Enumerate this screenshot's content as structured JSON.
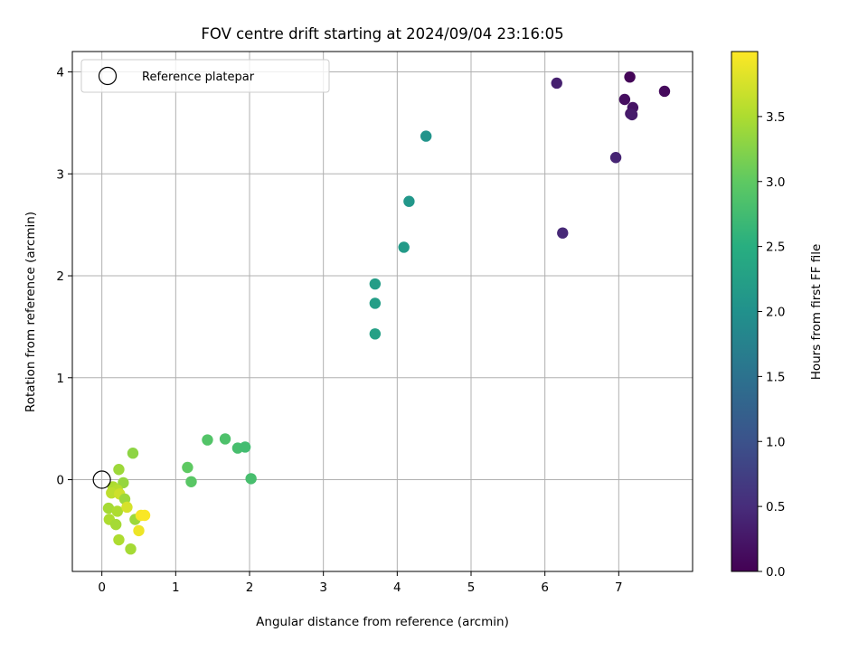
{
  "chart_data": {
    "type": "scatter",
    "title": "FOV centre drift starting at 2024/09/04 23:16:05",
    "xlabel": "Angular distance from reference (arcmin)",
    "ylabel": "Rotation from reference (arcmin)",
    "xlim": [
      -0.4,
      8.0
    ],
    "ylim": [
      -0.9,
      4.2
    ],
    "xticks": [
      0,
      1,
      2,
      3,
      4,
      5,
      6,
      7
    ],
    "yticks": [
      0,
      1,
      2,
      3,
      4
    ],
    "grid": true,
    "legend": {
      "position": "top-left",
      "entries": [
        "Reference platepar"
      ]
    },
    "reference_point": {
      "x": 0,
      "y": 0,
      "label": "Reference platepar"
    },
    "colorbar": {
      "label": "Hours from first FF file",
      "colormap": "viridis",
      "range": [
        0.0,
        4.0
      ],
      "ticks": [
        "0.0",
        "0.5",
        "1.0",
        "1.5",
        "2.0",
        "2.5",
        "3.0",
        "3.5"
      ]
    },
    "points": [
      {
        "x": 7.15,
        "y": 3.95,
        "c": 0.05
      },
      {
        "x": 7.62,
        "y": 3.81,
        "c": 0.1
      },
      {
        "x": 7.08,
        "y": 3.73,
        "c": 0.15
      },
      {
        "x": 7.19,
        "y": 3.65,
        "c": 0.2
      },
      {
        "x": 7.16,
        "y": 3.59,
        "c": 0.25
      },
      {
        "x": 7.18,
        "y": 3.58,
        "c": 0.3
      },
      {
        "x": 6.16,
        "y": 3.89,
        "c": 0.35
      },
      {
        "x": 6.96,
        "y": 3.16,
        "c": 0.4
      },
      {
        "x": 6.24,
        "y": 2.42,
        "c": 0.45
      },
      {
        "x": 4.39,
        "y": 3.37,
        "c": 2.05
      },
      {
        "x": 4.16,
        "y": 2.73,
        "c": 2.1
      },
      {
        "x": 4.09,
        "y": 2.28,
        "c": 2.15
      },
      {
        "x": 3.7,
        "y": 1.92,
        "c": 2.2
      },
      {
        "x": 3.7,
        "y": 1.73,
        "c": 2.22
      },
      {
        "x": 3.7,
        "y": 1.43,
        "c": 2.25
      },
      {
        "x": 1.43,
        "y": 0.39,
        "c": 2.9
      },
      {
        "x": 1.67,
        "y": 0.4,
        "c": 2.85
      },
      {
        "x": 1.84,
        "y": 0.31,
        "c": 2.8
      },
      {
        "x": 1.94,
        "y": 0.32,
        "c": 2.75
      },
      {
        "x": 2.02,
        "y": 0.01,
        "c": 2.8
      },
      {
        "x": 1.16,
        "y": 0.12,
        "c": 3.0
      },
      {
        "x": 1.21,
        "y": -0.02,
        "c": 2.95
      },
      {
        "x": 0.42,
        "y": 0.26,
        "c": 3.3
      },
      {
        "x": 0.23,
        "y": 0.1,
        "c": 3.4
      },
      {
        "x": 0.29,
        "y": -0.03,
        "c": 3.35
      },
      {
        "x": 0.15,
        "y": -0.07,
        "c": 3.5
      },
      {
        "x": 0.21,
        "y": -0.1,
        "c": 3.55
      },
      {
        "x": 0.13,
        "y": -0.13,
        "c": 3.6
      },
      {
        "x": 0.24,
        "y": -0.14,
        "c": 3.7
      },
      {
        "x": 0.31,
        "y": -0.19,
        "c": 3.4
      },
      {
        "x": 0.09,
        "y": -0.28,
        "c": 3.45
      },
      {
        "x": 0.21,
        "y": -0.31,
        "c": 3.5
      },
      {
        "x": 0.34,
        "y": -0.27,
        "c": 3.75
      },
      {
        "x": 0.45,
        "y": -0.39,
        "c": 3.4
      },
      {
        "x": 0.1,
        "y": -0.39,
        "c": 3.5
      },
      {
        "x": 0.19,
        "y": -0.44,
        "c": 3.45
      },
      {
        "x": 0.53,
        "y": -0.35,
        "c": 3.95
      },
      {
        "x": 0.58,
        "y": -0.35,
        "c": 3.98
      },
      {
        "x": 0.5,
        "y": -0.5,
        "c": 3.9
      },
      {
        "x": 0.23,
        "y": -0.59,
        "c": 3.5
      },
      {
        "x": 0.39,
        "y": -0.68,
        "c": 3.45
      }
    ]
  }
}
